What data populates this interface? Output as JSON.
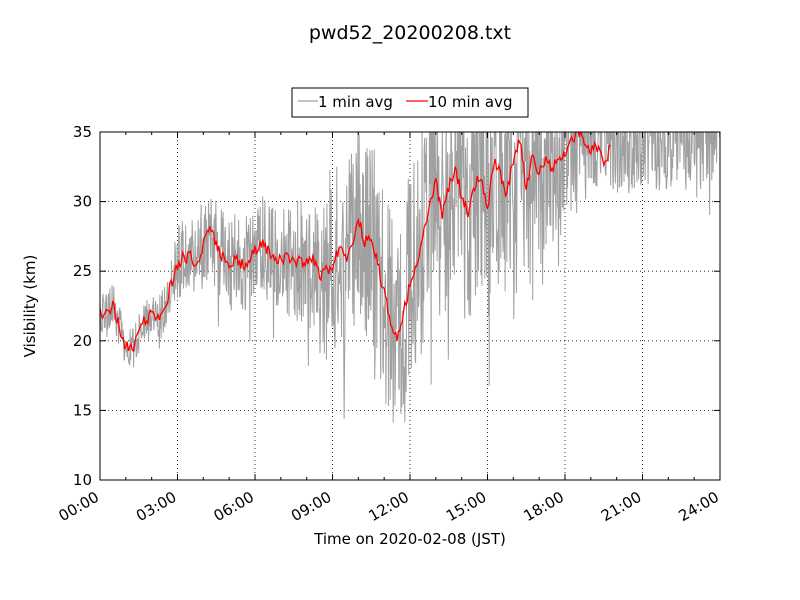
{
  "chart_data": {
    "type": "line",
    "title": "pwd52_20200208.txt",
    "xlabel": "Time on 2020-02-08 (JST)",
    "ylabel": "Visibility (km)",
    "xlim": [
      "00:00",
      "24:00"
    ],
    "ylim": [
      10,
      35
    ],
    "xticks": [
      "00:00",
      "03:00",
      "06:00",
      "09:00",
      "12:00",
      "15:00",
      "18:00",
      "21:00",
      "24:00"
    ],
    "yticks": [
      "10",
      "15",
      "20",
      "25",
      "30",
      "35"
    ],
    "grid": true,
    "legend_position": "top-center",
    "series": [
      {
        "name": "1 min avg",
        "color": "#a0a0a0",
        "resolution": "1 min",
        "x": [
          "00:00",
          "00:15",
          "00:30",
          "00:45",
          "01:00",
          "01:15",
          "01:30",
          "01:45",
          "02:00",
          "02:15",
          "02:30",
          "02:45",
          "03:00",
          "03:15",
          "03:30",
          "03:45",
          "04:00",
          "04:15",
          "04:30",
          "04:45",
          "05:00",
          "05:15",
          "05:30",
          "05:45",
          "06:00",
          "06:15",
          "06:30",
          "06:45",
          "07:00",
          "07:15",
          "07:30",
          "07:45",
          "08:00",
          "08:15",
          "08:30",
          "08:45",
          "09:00",
          "09:15",
          "09:30",
          "09:45",
          "10:00",
          "10:15",
          "10:30",
          "10:45",
          "11:00",
          "11:15",
          "11:30",
          "11:45",
          "12:00",
          "12:15",
          "12:30",
          "12:45",
          "13:00",
          "13:15",
          "13:30",
          "13:45",
          "14:00",
          "14:15",
          "14:30",
          "14:45",
          "15:00",
          "15:15",
          "15:30",
          "15:45",
          "16:00",
          "16:15",
          "16:30",
          "16:45",
          "17:00",
          "17:15",
          "17:30",
          "17:45",
          "18:00",
          "18:15",
          "18:30",
          "18:45",
          "19:00",
          "19:15",
          "19:30",
          "19:45",
          "20:00",
          "20:15",
          "20:30",
          "20:45",
          "21:00",
          "21:15",
          "21:30",
          "21:45",
          "22:00",
          "22:15",
          "22:30",
          "22:45",
          "23:00",
          "23:15",
          "23:30",
          "23:45",
          "24:00"
        ],
        "mean": [
          22,
          22,
          22.5,
          21,
          19.5,
          19.5,
          20.5,
          21.5,
          22,
          21.5,
          22.5,
          24,
          25.5,
          26,
          26,
          25.5,
          27,
          28.5,
          27,
          26,
          25.5,
          26,
          25.5,
          25.5,
          26.5,
          27,
          26.5,
          26,
          26,
          26,
          25.5,
          26,
          25.5,
          26,
          24.5,
          25,
          25.5,
          26.5,
          26,
          26.5,
          29,
          27,
          27.5,
          25.5,
          23.5,
          21.5,
          20,
          22,
          24,
          25.5,
          27.5,
          30,
          31.5,
          29,
          31,
          32.5,
          30.5,
          29,
          31,
          32,
          29.5,
          33,
          32,
          30.5,
          33,
          34.5,
          31,
          33.5,
          32,
          33,
          32.5,
          33,
          33.5,
          34.5,
          35,
          34.5,
          35,
          35,
          35,
          35,
          35,
          35,
          35,
          35,
          35,
          35,
          35,
          35,
          35,
          35,
          35,
          35,
          35,
          35,
          35,
          35,
          35
        ],
        "spread": [
          1,
          1,
          1.2,
          1.2,
          1,
          1,
          1,
          1,
          1,
          1.2,
          1.5,
          1.5,
          2,
          2,
          2,
          2.5,
          2.5,
          2.5,
          2.5,
          2.5,
          2.5,
          2.5,
          2.5,
          2.5,
          2.5,
          2.5,
          2.5,
          2.5,
          2.5,
          3,
          3,
          3.5,
          3.5,
          4,
          4.5,
          5,
          5,
          5,
          5,
          5,
          5,
          5,
          5,
          5.5,
          5.5,
          5.5,
          5.5,
          5.5,
          6,
          6,
          6,
          6,
          6,
          6,
          6,
          6,
          6,
          6,
          6,
          6,
          6,
          5.5,
          5.5,
          5.5,
          5.5,
          5,
          5,
          5,
          5,
          4.5,
          4.5,
          4.5,
          4,
          4,
          4,
          3.5,
          3.5,
          3.5,
          3,
          3,
          3,
          3,
          3,
          3,
          3,
          3,
          3,
          3,
          3,
          3,
          3,
          3,
          3,
          3,
          3,
          3,
          3
        ]
      },
      {
        "name": "10 min avg",
        "color": "#ff0000",
        "resolution": "10 min",
        "x": [
          "00:00",
          "00:15",
          "00:30",
          "00:45",
          "01:00",
          "01:15",
          "01:30",
          "01:45",
          "02:00",
          "02:15",
          "02:30",
          "02:45",
          "03:00",
          "03:15",
          "03:30",
          "03:45",
          "04:00",
          "04:15",
          "04:30",
          "04:45",
          "05:00",
          "05:15",
          "05:30",
          "05:45",
          "06:00",
          "06:15",
          "06:30",
          "06:45",
          "07:00",
          "07:15",
          "07:30",
          "07:45",
          "08:00",
          "08:15",
          "08:30",
          "08:45",
          "09:00",
          "09:15",
          "09:30",
          "09:45",
          "10:00",
          "10:15",
          "10:30",
          "10:45",
          "11:00",
          "11:15",
          "11:30",
          "11:45",
          "12:00",
          "12:15",
          "12:30",
          "12:45",
          "13:00",
          "13:15",
          "13:30",
          "13:45",
          "14:00",
          "14:15",
          "14:30",
          "14:45",
          "15:00",
          "15:15",
          "15:30",
          "15:45",
          "16:00",
          "16:15",
          "16:30",
          "16:45",
          "17:00",
          "17:15",
          "17:30",
          "17:45",
          "18:00",
          "18:15",
          "18:30",
          "18:45",
          "19:00",
          "19:15",
          "19:30",
          "19:45"
        ],
        "y": [
          22,
          22,
          22.5,
          21,
          19.5,
          19.5,
          20.5,
          21.5,
          22,
          21.5,
          22.5,
          24,
          25.5,
          26,
          26,
          25.5,
          27,
          28.5,
          27,
          26,
          25.5,
          26,
          25.5,
          25.5,
          26.5,
          27,
          26.5,
          26,
          26,
          26,
          25.5,
          26,
          25.5,
          26,
          24.5,
          25,
          25.5,
          26.5,
          26,
          26.5,
          29,
          27,
          27.5,
          25.5,
          23.5,
          21.5,
          20,
          22,
          24,
          25.5,
          27.5,
          30,
          31.5,
          29,
          31,
          32.5,
          30.5,
          29,
          31,
          32,
          29.5,
          33,
          32,
          30.5,
          33,
          34.5,
          31,
          33.5,
          32,
          33,
          32.5,
          33,
          33.5,
          34.5,
          35,
          34.5,
          33.5,
          34,
          32.5,
          34
        ]
      }
    ]
  }
}
